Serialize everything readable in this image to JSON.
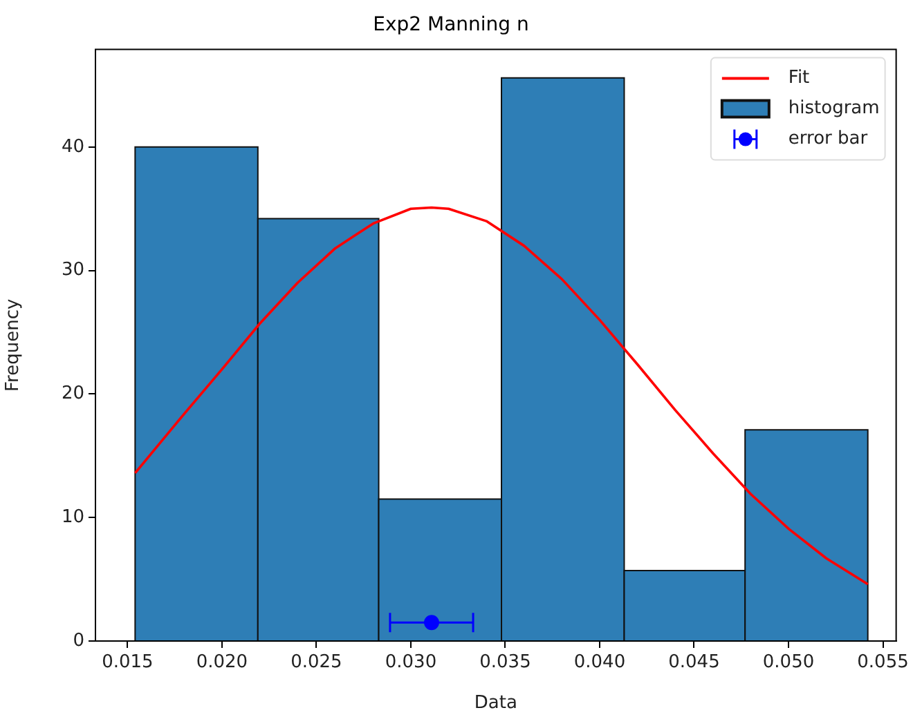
{
  "chart_data": {
    "type": "histogram",
    "title": "Exp2 Manning n",
    "xlabel": "Data",
    "ylabel": "Frequency",
    "series": [
      {
        "type": "line",
        "name": "Fit",
        "color": "#ff0000",
        "x": [
          0.0154,
          0.018,
          0.02,
          0.022,
          0.024,
          0.026,
          0.028,
          0.03,
          0.0311,
          0.032,
          0.034,
          0.036,
          0.038,
          0.04,
          0.042,
          0.044,
          0.046,
          0.048,
          0.05,
          0.052,
          0.0542
        ],
        "values": [
          13.6,
          18.4,
          22.0,
          25.7,
          29.0,
          31.8,
          33.8,
          35.0,
          35.1,
          35.0,
          34.0,
          32.0,
          29.3,
          26.0,
          22.4,
          18.7,
          15.2,
          11.9,
          9.1,
          6.7,
          4.6
        ]
      },
      {
        "name": "histogram",
        "color": "#2e7eb6",
        "bins": [
          0.0154,
          0.0219,
          0.0283,
          0.0348,
          0.0413,
          0.0477,
          0.0542
        ],
        "values": [
          40.0,
          34.2,
          11.5,
          45.6,
          5.7,
          17.1
        ]
      },
      {
        "type": "scatter",
        "name": "error bar",
        "color": "#0000ff",
        "marker": "circle",
        "x": [
          0.0311
        ],
        "values": [
          1.5
        ],
        "xerrors": [
          0.0022
        ]
      }
    ],
    "xlim": [
      0.0133,
      0.0557
    ],
    "ylim": [
      0,
      47.9
    ],
    "xticks": [
      {
        "value": 0.015,
        "label": "0.015"
      },
      {
        "value": 0.02,
        "label": "0.020"
      },
      {
        "value": 0.025,
        "label": "0.025"
      },
      {
        "value": 0.03,
        "label": "0.030"
      },
      {
        "value": 0.035,
        "label": "0.035"
      },
      {
        "value": 0.04,
        "label": "0.040"
      },
      {
        "value": 0.045,
        "label": "0.045"
      },
      {
        "value": 0.05,
        "label": "0.050"
      },
      {
        "value": 0.055,
        "label": "0.055"
      }
    ],
    "yticks": [
      0,
      10,
      20,
      30,
      40
    ],
    "grid": false,
    "legend": "top right"
  }
}
